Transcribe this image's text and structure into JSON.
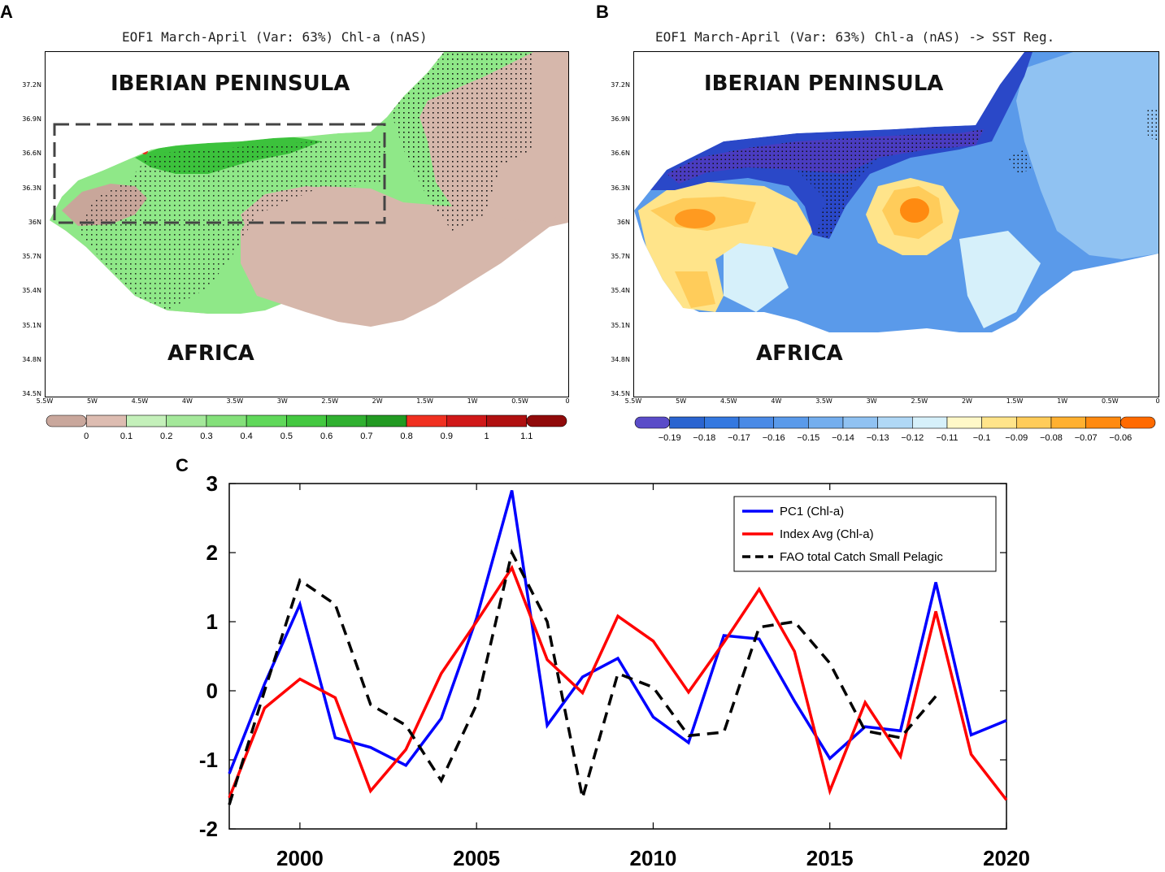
{
  "panel_a": {
    "letter": "A",
    "title": "EOF1 March-April (Var: 63%) Chl-a (nAS)",
    "labels": {
      "north": "IBERIAN PENINSULA",
      "south": "AFRICA"
    },
    "lat_ticks": [
      "37.2N",
      "36.9N",
      "36.6N",
      "36.3N",
      "36N",
      "35.7N",
      "35.4N",
      "35.1N",
      "34.8N",
      "34.5N"
    ],
    "lon_ticks": [
      "5.5W",
      "5W",
      "4.5W",
      "4W",
      "3.5W",
      "3W",
      "2.5W",
      "2W",
      "1.5W",
      "1W",
      "0.5W",
      "0"
    ],
    "colorbar": {
      "ticks": [
        "0",
        "0.1",
        "0.2",
        "0.3",
        "0.4",
        "0.5",
        "0.6",
        "0.7",
        "0.8",
        "0.9",
        "1",
        "1.1"
      ],
      "colors": [
        "#c9a79c",
        "#ddbcb1",
        "#c4f0ba",
        "#a4e89a",
        "#84e07a",
        "#60d85a",
        "#44c840",
        "#30b030",
        "#229a22",
        "#f03020",
        "#d01818",
        "#b01010",
        "#900a0a"
      ]
    }
  },
  "panel_b": {
    "letter": "B",
    "title": "EOF1 March-April (Var: 63%) Chl-a (nAS) -> SST Reg.",
    "labels": {
      "north": "IBERIAN PENINSULA",
      "south": "AFRICA"
    },
    "lat_ticks": [
      "37.2N",
      "36.9N",
      "36.6N",
      "36.3N",
      "36N",
      "35.7N",
      "35.4N",
      "35.1N",
      "34.8N",
      "34.5N"
    ],
    "lon_ticks": [
      "5.5W",
      "5W",
      "4.5W",
      "4W",
      "3.5W",
      "3W",
      "2.5W",
      "2W",
      "1.5W",
      "1W",
      "0.5W",
      "0"
    ],
    "colorbar": {
      "ticks": [
        "−0.19",
        "−0.18",
        "−0.17",
        "−0.16",
        "−0.15",
        "−0.14",
        "−0.13",
        "−0.12",
        "−0.11",
        "−0.1",
        "−0.09",
        "−0.08",
        "−0.07",
        "−0.06"
      ],
      "colors": [
        "#5a4cc8",
        "#2a64d0",
        "#3478e0",
        "#4a8ae6",
        "#5a9aea",
        "#74aeee",
        "#90c2f2",
        "#b0d8f6",
        "#d6f0fa",
        "#fff8c8",
        "#ffe48a",
        "#ffcc5a",
        "#ffb030",
        "#ff8a10",
        "#ff6a00"
      ]
    }
  },
  "panel_c": {
    "letter": "C",
    "chart_data": {
      "type": "line",
      "xlim": [
        1998,
        2020
      ],
      "ylim": [
        -2,
        3
      ],
      "x_ticks": [
        "2000",
        "2005",
        "2010",
        "2015",
        "2020"
      ],
      "y_ticks": [
        "3",
        "2",
        "1",
        "0",
        "-1",
        "-2"
      ],
      "legend_position": "top-right",
      "series": [
        {
          "name": "PC1 (Chl-a)",
          "color": "#0000ff",
          "style": "solid",
          "x": [
            1998,
            1999,
            2000,
            2001,
            2002,
            2003,
            2004,
            2005,
            2006,
            2007,
            2008,
            2009,
            2010,
            2011,
            2012,
            2013,
            2014,
            2015,
            2016,
            2017,
            2018,
            2019,
            2020
          ],
          "values": [
            -1.2,
            0.1,
            1.25,
            -0.68,
            -0.82,
            -1.08,
            -0.4,
            1.05,
            2.9,
            -0.5,
            0.2,
            0.47,
            -0.38,
            -0.75,
            0.8,
            0.75,
            -0.15,
            -0.98,
            -0.52,
            -0.58,
            1.57,
            -0.64,
            -0.43
          ]
        },
        {
          "name": "Index Avg (Chl-a)",
          "color": "#ff0000",
          "style": "solid",
          "x": [
            1998,
            1999,
            2000,
            2001,
            2002,
            2003,
            2004,
            2005,
            2006,
            2007,
            2008,
            2009,
            2010,
            2011,
            2012,
            2013,
            2014,
            2015,
            2016,
            2017,
            2018,
            2019,
            2020
          ],
          "values": [
            -1.55,
            -0.25,
            0.17,
            -0.1,
            -1.45,
            -0.85,
            0.25,
            1.0,
            1.78,
            0.45,
            -0.03,
            1.08,
            0.72,
            -0.02,
            0.7,
            1.47,
            0.57,
            -1.45,
            -0.17,
            -0.95,
            1.15,
            -0.92,
            -1.58
          ]
        },
        {
          "name": "FAO total Catch Small Pelagic",
          "color": "#000000",
          "style": "dashed",
          "x": [
            1998,
            1999,
            2000,
            2001,
            2002,
            2003,
            2004,
            2005,
            2006,
            2007,
            2008,
            2009,
            2010,
            2011,
            2012,
            2013,
            2014,
            2015,
            2016,
            2017,
            2018
          ],
          "values": [
            -1.65,
            0.0,
            1.6,
            1.25,
            -0.2,
            -0.5,
            -1.3,
            -0.2,
            2.0,
            1.0,
            -1.55,
            0.25,
            0.05,
            -0.65,
            -0.6,
            0.92,
            1.0,
            0.4,
            -0.58,
            -0.68,
            -0.08
          ]
        }
      ]
    }
  }
}
